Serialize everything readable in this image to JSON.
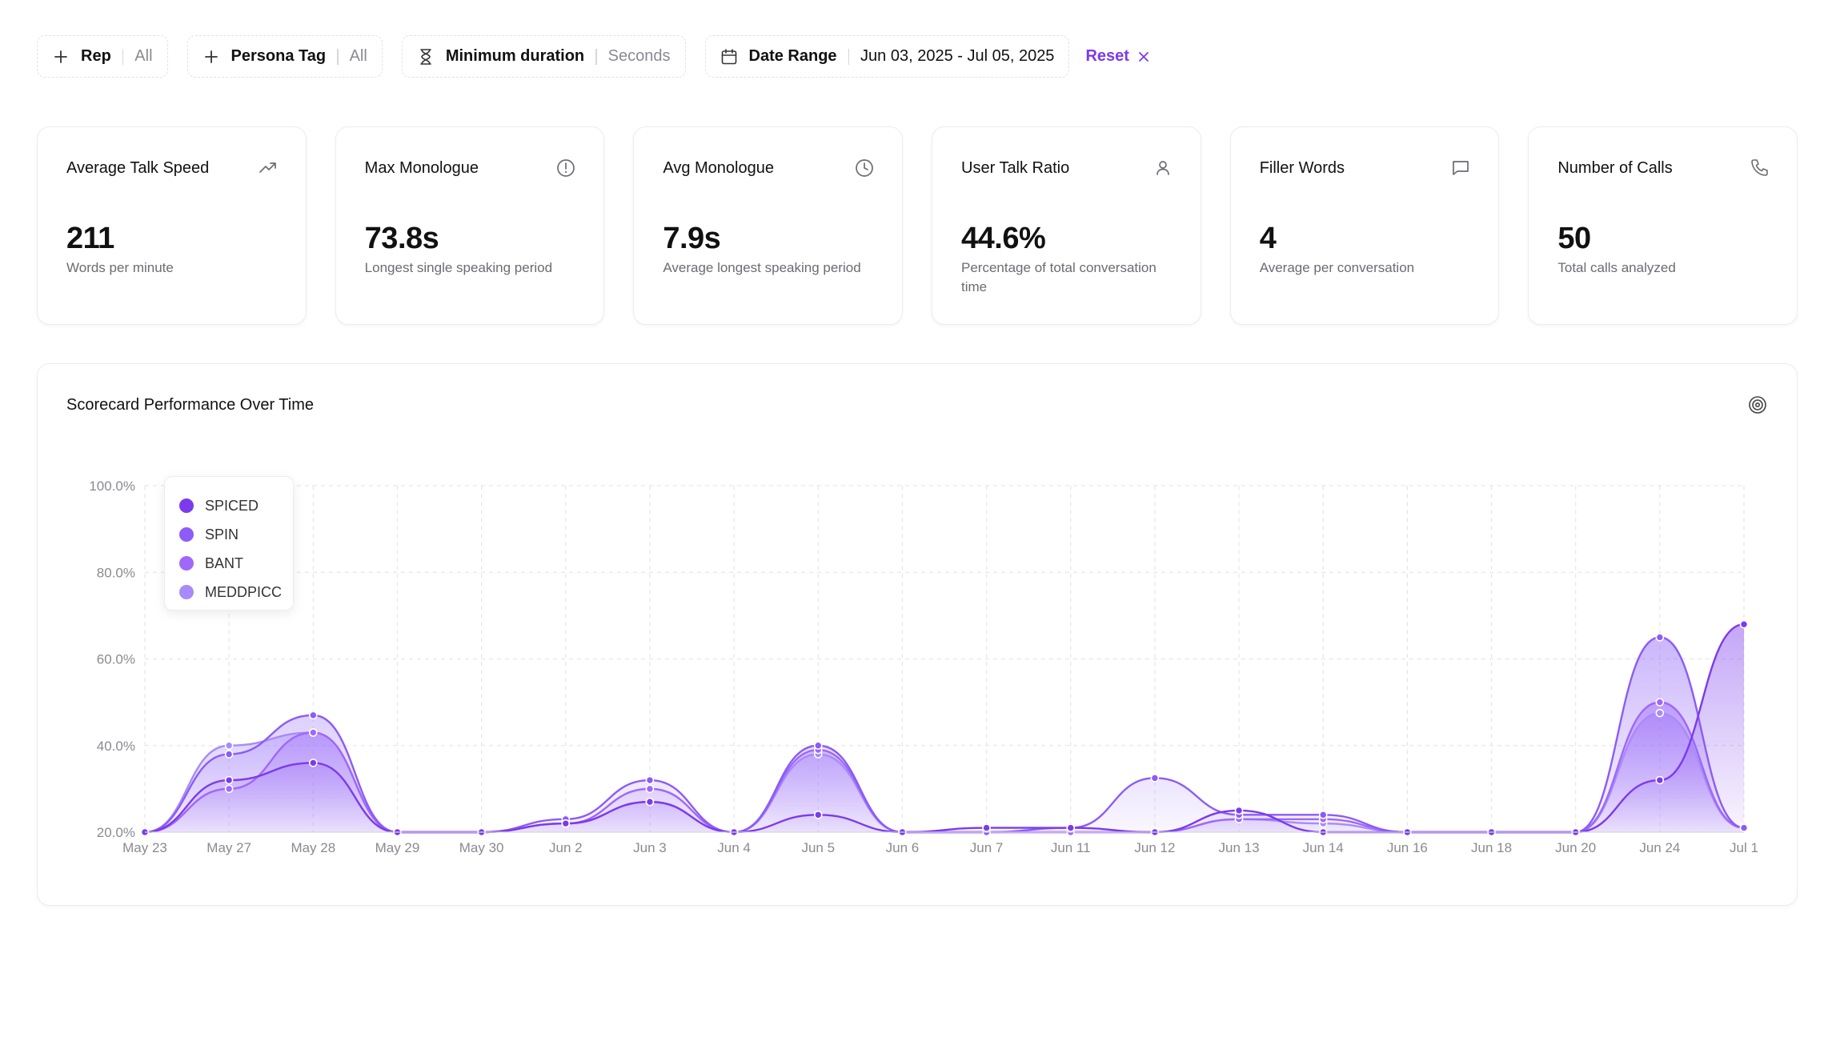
{
  "filters": {
    "rep": {
      "label": "Rep",
      "value": "All"
    },
    "persona": {
      "label": "Persona Tag",
      "value": "All"
    },
    "duration": {
      "label": "Minimum duration",
      "value": "Seconds"
    },
    "date": {
      "label": "Date Range",
      "value": "Jun 03, 2025 - Jul 05, 2025"
    },
    "reset_label": "Reset"
  },
  "cards": [
    {
      "title": "Average Talk Speed",
      "value": "211",
      "desc": "Words per minute",
      "icon": "trending-up-icon"
    },
    {
      "title": "Max Monologue",
      "value": "73.8s",
      "desc": "Longest single speaking period",
      "icon": "alert-circle-icon"
    },
    {
      "title": "Avg Monologue",
      "value": "7.9s",
      "desc": "Average longest speaking period",
      "icon": "clock-icon"
    },
    {
      "title": "User Talk Ratio",
      "value": "44.6%",
      "desc": "Percentage of total conversation time",
      "icon": "user-icon"
    },
    {
      "title": "Filler Words",
      "value": "4",
      "desc": "Average per conversation",
      "icon": "message-icon"
    },
    {
      "title": "Number of Calls",
      "value": "50",
      "desc": "Total calls analyzed",
      "icon": "phone-icon"
    }
  ],
  "chart_panel": {
    "title": "Scorecard Performance Over Time",
    "icon": "target-icon"
  },
  "chart_data": {
    "type": "area",
    "title": "Scorecard Performance Over Time",
    "categories": [
      "May 23",
      "May 27",
      "May 28",
      "May 29",
      "May 30",
      "Jun 2",
      "Jun 3",
      "Jun 4",
      "Jun 5",
      "Jun 6",
      "Jun 7",
      "Jun 11",
      "Jun 12",
      "Jun 13",
      "Jun 14",
      "Jun 16",
      "Jun 18",
      "Jun 20",
      "Jun 24",
      "Jul 1"
    ],
    "y_ticks": [
      "20.0%",
      "40.0%",
      "60.0%",
      "80.0%",
      "100.0%"
    ],
    "ylim": [
      20,
      100
    ],
    "grid": true,
    "legend_position": "top-left",
    "series": [
      {
        "name": "SPICED",
        "color": "#7c3aed",
        "values": [
          20,
          32,
          36,
          20,
          20,
          22,
          27,
          20,
          24,
          20,
          21,
          21,
          20,
          25,
          20,
          20,
          20,
          20,
          32,
          68
        ]
      },
      {
        "name": "SPIN",
        "color": "#8b5cf6",
        "values": [
          20,
          38,
          47,
          20,
          20,
          23,
          32,
          20,
          40,
          20,
          20,
          21,
          32.5,
          24,
          24,
          20,
          20,
          20,
          65,
          21
        ]
      },
      {
        "name": "BANT",
        "color": "#9f67fa",
        "values": [
          20,
          30,
          43,
          20,
          20,
          22,
          30,
          20,
          39,
          20,
          20,
          20,
          20,
          23,
          23,
          20,
          20,
          20,
          50,
          21
        ]
      },
      {
        "name": "MEDDPICC",
        "color": "#a78bfa",
        "values": [
          20,
          40,
          43,
          20,
          20,
          22,
          27,
          20,
          38,
          20,
          20,
          20,
          20,
          23,
          22,
          20,
          20,
          20,
          47.5,
          21
        ]
      }
    ]
  }
}
